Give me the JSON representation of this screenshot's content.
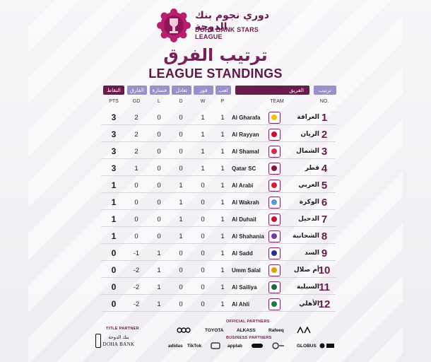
{
  "league": {
    "name_ar": "دوري نجوم بنك الدوحة",
    "name_en": "DOHA BANK STARS LEAGUE"
  },
  "title": {
    "ar": "ترتيب الفرق",
    "en": "LEAGUE STANDINGS"
  },
  "header_ar": {
    "pts": "النقاط",
    "gd": "الفارق",
    "l": "خسارة",
    "d": "تعادل",
    "w": "فوز",
    "p": "لعب",
    "team": "الفريق",
    "no": "ترتيب"
  },
  "header_en": {
    "pts": "PTS",
    "gd": "GD",
    "l": "L",
    "d": "D",
    "w": "W",
    "p": "P",
    "team": "TEAM",
    "no": "NO."
  },
  "standings": [
    {
      "pos": "1",
      "pts": "3",
      "gd": "2",
      "l": "0",
      "d": "0",
      "w": "1",
      "p": "1",
      "team_en": "Al Gharafa",
      "team_ar": "الغرافة",
      "crest_color": "#f2c200"
    },
    {
      "pos": "2",
      "pts": "3",
      "gd": "2",
      "l": "0",
      "d": "0",
      "w": "1",
      "p": "1",
      "team_en": "Al Rayyan",
      "team_ar": "الريان",
      "crest_color": "#c8102e"
    },
    {
      "pos": "3",
      "pts": "3",
      "gd": "2",
      "l": "0",
      "d": "0",
      "w": "1",
      "p": "1",
      "team_en": "Al Shamal",
      "team_ar": "الشمال",
      "crest_color": "#d62a4a"
    },
    {
      "pos": "4",
      "pts": "3",
      "gd": "1",
      "l": "0",
      "d": "0",
      "w": "1",
      "p": "1",
      "team_en": "Qatar SC",
      "team_ar": "قطر",
      "crest_color": "#8a1538"
    },
    {
      "pos": "5",
      "pts": "1",
      "gd": "0",
      "l": "0",
      "d": "1",
      "w": "0",
      "p": "1",
      "team_en": "Al Arabi",
      "team_ar": "العربي",
      "crest_color": "#d41f2b"
    },
    {
      "pos": "6",
      "pts": "1",
      "gd": "0",
      "l": "0",
      "d": "1",
      "w": "0",
      "p": "1",
      "team_en": "Al Wakrah",
      "team_ar": "الوكرة",
      "crest_color": "#5b9bd5"
    },
    {
      "pos": "7",
      "pts": "1",
      "gd": "0",
      "l": "0",
      "d": "1",
      "w": "0",
      "p": "1",
      "team_en": "Al Duhail",
      "team_ar": "الدحيل",
      "crest_color": "#c8102e"
    },
    {
      "pos": "8",
      "pts": "1",
      "gd": "0",
      "l": "0",
      "d": "1",
      "w": "0",
      "p": "1",
      "team_en": "Al Shahania",
      "team_ar": "الشحانية",
      "crest_color": "#6a3fa0"
    },
    {
      "pos": "9",
      "pts": "0",
      "gd": "-1",
      "l": "1",
      "d": "0",
      "w": "0",
      "p": "1",
      "team_en": "Al Sadd",
      "team_ar": "السد",
      "crest_color": "#2e2e8f"
    },
    {
      "pos": "10",
      "pts": "0",
      "gd": "-2",
      "l": "1",
      "d": "0",
      "w": "0",
      "p": "1",
      "team_en": "Umm Salal",
      "team_ar": "أم صلال",
      "crest_color": "#e0a100"
    },
    {
      "pos": "11",
      "pts": "0",
      "gd": "-2",
      "l": "1",
      "d": "0",
      "w": "0",
      "p": "1",
      "team_en": "Al Sailiya",
      "team_ar": "السيلية",
      "crest_color": "#1b6b3a"
    },
    {
      "pos": "12",
      "pts": "0",
      "gd": "-2",
      "l": "1",
      "d": "0",
      "w": "0",
      "p": "1",
      "team_en": "Al Ahli",
      "team_ar": "الأهلي",
      "crest_color": "#1d7a3a"
    }
  ],
  "partners": {
    "title_partner_label": "TITLE PARTNER",
    "title_partner_ar": "بنك الدوحة",
    "title_partner_en": "DOHA BANK",
    "official_label": "OFFICIAL PARTNERS",
    "official": [
      "TOYOTA",
      "ALKASS",
      "Rafeeq"
    ],
    "business_label": "BUSINESS PARTNERS",
    "business": [
      "adidas",
      "TikTok",
      "applab",
      "GLOBUS"
    ]
  },
  "colors": {
    "accent_dark": "#6b1a4c",
    "accent_light": "#9b8fc9"
  }
}
